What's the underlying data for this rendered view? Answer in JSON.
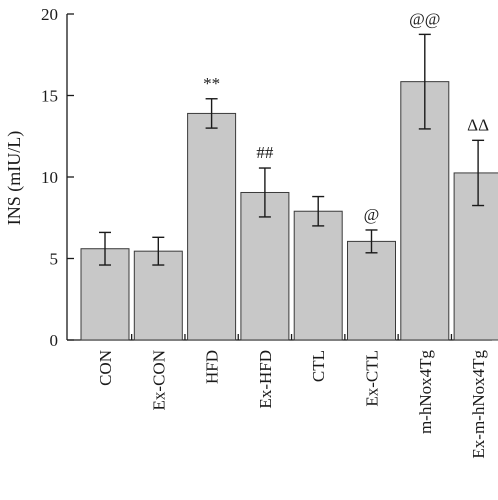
{
  "chart_data": {
    "type": "bar",
    "ylabel": "INS (mIU/L)",
    "ylim": [
      0,
      20
    ],
    "yticks": [
      0,
      5,
      10,
      15,
      20
    ],
    "categories": [
      "CON",
      "Ex-CON",
      "HFD",
      "Ex-HFD",
      "CTL",
      "Ex-CTL",
      "m-hNox4Tg",
      "Ex-m-hNox4Tg"
    ],
    "values": [
      5.6,
      5.45,
      13.9,
      9.05,
      7.9,
      6.05,
      15.85,
      10.25
    ],
    "errors": [
      1.0,
      0.85,
      0.9,
      1.5,
      0.9,
      0.7,
      2.9,
      2.0
    ],
    "annotations": [
      "",
      "",
      "**",
      "##",
      "",
      "@",
      "@@",
      "ΔΔ"
    ],
    "bar_color": "#c8c8c8",
    "grid": false
  }
}
